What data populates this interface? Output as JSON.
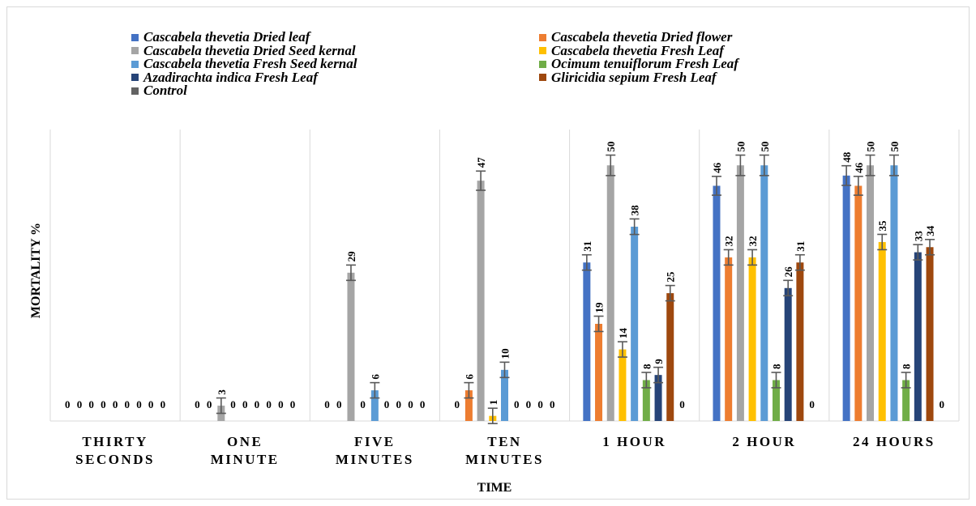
{
  "chart_data": {
    "type": "bar",
    "xlabel": "TIME",
    "ylabel": "MORTALITY %",
    "ylim": [
      0,
      57
    ],
    "grid": false,
    "legend_position": "top",
    "categories": [
      "THIRTY\nSECONDS",
      "ONE\nMINUTE",
      "FIVE\nMINUTES",
      "TEN\nMINUTES",
      "1 HOUR",
      "2 HOUR",
      "24 HOURS"
    ],
    "series": [
      {
        "name": "Cascabela thevetia Dried leaf",
        "color": "#4472c4",
        "values": [
          0,
          0,
          0,
          0,
          31,
          46,
          48
        ]
      },
      {
        "name": "Cascabela thevetia Dried flower",
        "color": "#ed7d31",
        "values": [
          0,
          0,
          0,
          6,
          19,
          32,
          46
        ]
      },
      {
        "name": "Cascabela thevetia Dried Seed kernal",
        "color": "#a5a5a5",
        "values": [
          0,
          3,
          29,
          47,
          50,
          50,
          50
        ]
      },
      {
        "name": "Cascabela thevetia Fresh Leaf",
        "color": "#ffc000",
        "values": [
          0,
          0,
          0,
          1,
          14,
          32,
          35
        ]
      },
      {
        "name": "Cascabela thevetia Fresh Seed kernal",
        "color": "#5b9bd5",
        "values": [
          0,
          0,
          6,
          10,
          38,
          50,
          50
        ]
      },
      {
        "name": "Ocimum tenuiflorum Fresh Leaf",
        "color": "#70ad47",
        "values": [
          0,
          0,
          0,
          0,
          8,
          8,
          8
        ]
      },
      {
        "name": "Azadirachta indica Fresh Leaf",
        "color": "#264478",
        "values": [
          0,
          0,
          0,
          0,
          9,
          26,
          33
        ]
      },
      {
        "name": "Gliricidia sepium  Fresh Leaf",
        "color": "#9e480e",
        "values": [
          0,
          0,
          0,
          0,
          25,
          31,
          34
        ]
      },
      {
        "name": "Control",
        "color": "#636363",
        "values": [
          0,
          0,
          0,
          0,
          0,
          0,
          0
        ]
      }
    ]
  }
}
